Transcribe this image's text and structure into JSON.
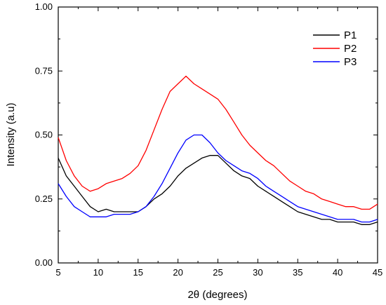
{
  "chart_data": {
    "type": "line",
    "xlabel": "2θ (degrees)",
    "ylabel": "Intensity (a.u)",
    "xlim": [
      5,
      45
    ],
    "ylim": [
      0.0,
      1.0
    ],
    "xticks": [
      5,
      10,
      15,
      20,
      25,
      30,
      35,
      40,
      45
    ],
    "xtick_labels": [
      "5",
      "10",
      "15",
      "20",
      "25",
      "30",
      "35",
      "40",
      "45"
    ],
    "yticks": [
      0.0,
      0.25,
      0.5,
      0.75,
      1.0
    ],
    "ytick_labels": [
      "0.00",
      "0.25",
      "0.50",
      "0.75",
      "1.00"
    ],
    "grid": false,
    "legend_position": "top-right",
    "x": [
      5,
      6,
      7,
      8,
      9,
      10,
      11,
      12,
      13,
      14,
      15,
      16,
      17,
      18,
      19,
      20,
      21,
      22,
      23,
      24,
      25,
      26,
      27,
      28,
      29,
      30,
      31,
      32,
      33,
      34,
      35,
      36,
      37,
      38,
      39,
      40,
      41,
      42,
      43,
      44,
      45
    ],
    "series": [
      {
        "name": "P1",
        "color": "#000000",
        "values": [
          0.41,
          0.34,
          0.3,
          0.26,
          0.22,
          0.2,
          0.21,
          0.2,
          0.2,
          0.2,
          0.2,
          0.22,
          0.25,
          0.27,
          0.3,
          0.34,
          0.37,
          0.39,
          0.41,
          0.42,
          0.42,
          0.39,
          0.36,
          0.34,
          0.33,
          0.3,
          0.28,
          0.26,
          0.24,
          0.22,
          0.2,
          0.19,
          0.18,
          0.17,
          0.17,
          0.16,
          0.16,
          0.16,
          0.15,
          0.15,
          0.16
        ]
      },
      {
        "name": "P2",
        "color": "#ff0000",
        "values": [
          0.49,
          0.4,
          0.34,
          0.3,
          0.28,
          0.29,
          0.31,
          0.32,
          0.33,
          0.35,
          0.38,
          0.44,
          0.52,
          0.6,
          0.67,
          0.7,
          0.73,
          0.7,
          0.68,
          0.66,
          0.64,
          0.6,
          0.55,
          0.5,
          0.46,
          0.43,
          0.4,
          0.38,
          0.35,
          0.32,
          0.3,
          0.28,
          0.27,
          0.25,
          0.24,
          0.23,
          0.22,
          0.22,
          0.21,
          0.21,
          0.23
        ]
      },
      {
        "name": "P3",
        "color": "#0000ff",
        "values": [
          0.31,
          0.26,
          0.22,
          0.2,
          0.18,
          0.18,
          0.18,
          0.19,
          0.19,
          0.19,
          0.2,
          0.22,
          0.26,
          0.31,
          0.37,
          0.43,
          0.48,
          0.5,
          0.5,
          0.47,
          0.43,
          0.4,
          0.38,
          0.36,
          0.35,
          0.33,
          0.3,
          0.28,
          0.26,
          0.24,
          0.22,
          0.21,
          0.2,
          0.19,
          0.18,
          0.17,
          0.17,
          0.17,
          0.16,
          0.16,
          0.17
        ]
      }
    ]
  }
}
